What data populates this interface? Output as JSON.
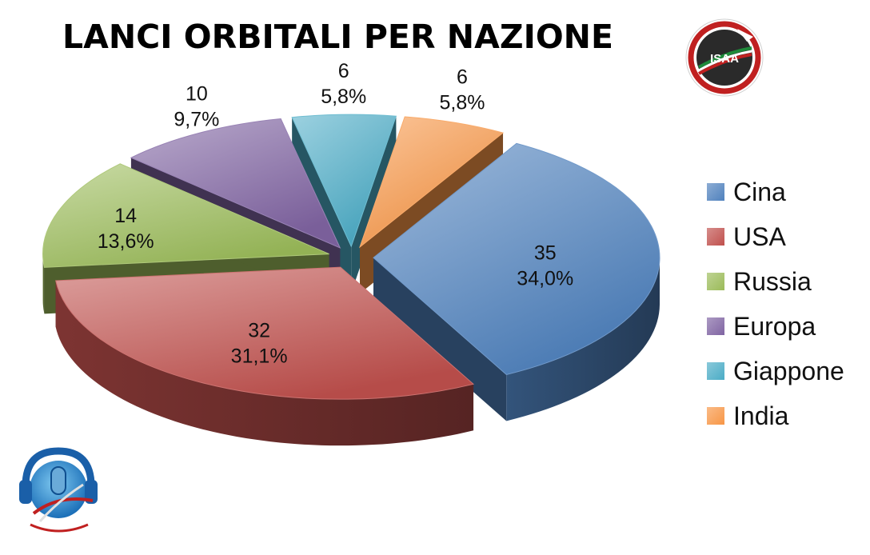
{
  "title": "LANCI ORBITALI PER NAZIONE",
  "chart_data": {
    "type": "pie",
    "title": "LANCI ORBITALI PER NAZIONE",
    "categories": [
      "Cina",
      "USA",
      "Russia",
      "Europa",
      "Giappone",
      "India"
    ],
    "values": [
      35,
      32,
      14,
      10,
      6,
      6
    ],
    "percent_labels": [
      "34,0%",
      "31,1%",
      "13,6%",
      "9,7%",
      "5,8%",
      "5,8%"
    ],
    "colors": [
      "#4f81bd",
      "#c0504d",
      "#9bbb59",
      "#8064a2",
      "#4bacc6",
      "#f79646"
    ],
    "legend_position": "right",
    "style": "3d-exploded"
  },
  "logos": {
    "isaa": {
      "text": "ISAA"
    }
  }
}
